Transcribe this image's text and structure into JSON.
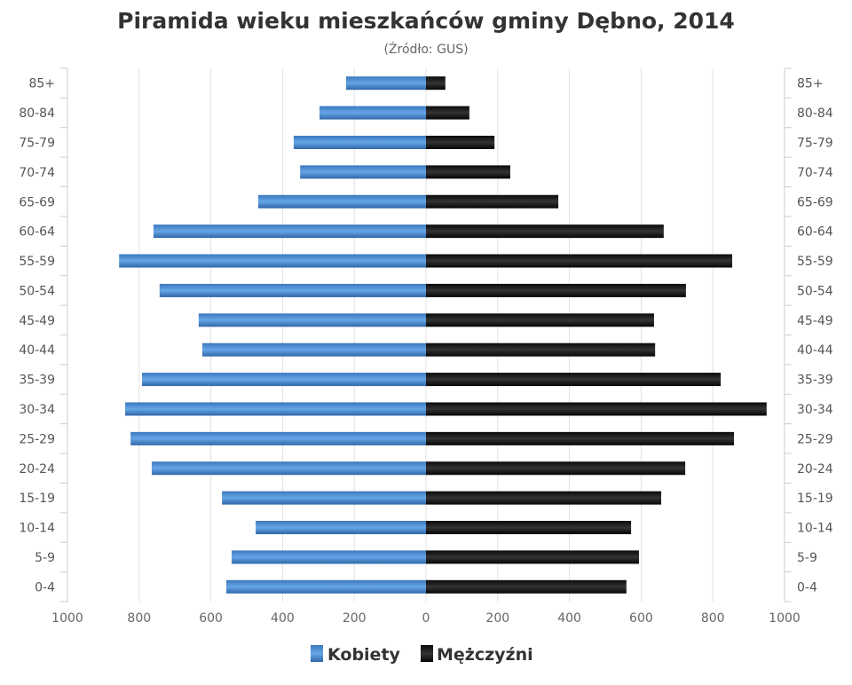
{
  "chart_data": {
    "type": "bar",
    "orientation": "horizontal-pyramid",
    "title": "Piramida wieku mieszkańców gminy Dębno, 2014",
    "subtitle": "(Źródło: GUS)",
    "categories": [
      "85+",
      "80-84",
      "75-79",
      "70-74",
      "65-69",
      "60-64",
      "55-59",
      "50-54",
      "45-49",
      "40-44",
      "35-39",
      "30-34",
      "25-29",
      "20-24",
      "15-19",
      "10-14",
      "5-9",
      "0-4"
    ],
    "series": [
      {
        "name": "Kobiety",
        "color": "#4a8fd6",
        "values": [
          223,
          297,
          369,
          351,
          468,
          760,
          856,
          743,
          634,
          624,
          792,
          839,
          824,
          765,
          569,
          475,
          542,
          557
        ]
      },
      {
        "name": "Mężczyźni",
        "color": "#1a1a1a",
        "values": [
          54,
          121,
          191,
          235,
          369,
          663,
          854,
          725,
          636,
          639,
          822,
          950,
          859,
          723,
          656,
          572,
          594,
          559
        ]
      }
    ],
    "xlim": [
      -1000,
      1000
    ],
    "xticks": [
      -1000,
      -800,
      -600,
      -400,
      -200,
      0,
      200,
      400,
      600,
      800,
      1000
    ],
    "xtick_labels": [
      "1000",
      "800",
      "600",
      "400",
      "200",
      "0",
      "200",
      "400",
      "600",
      "800",
      "1000"
    ],
    "grid": true,
    "legend": "bottom"
  }
}
